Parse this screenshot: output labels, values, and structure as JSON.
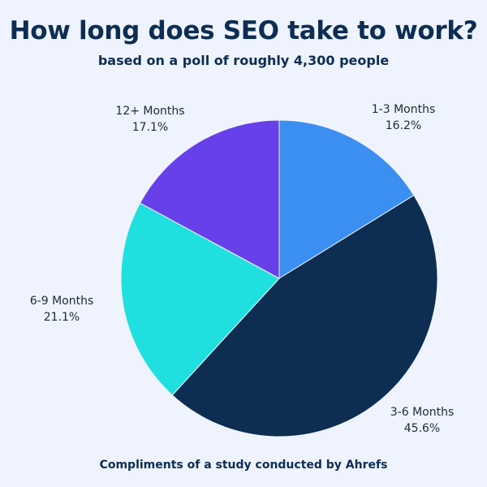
{
  "title": "How long does SEO take to work?",
  "subtitle": "based on a poll of roughly 4,300 people",
  "footer": "Compliments of a study conducted by Ahrefs",
  "chart_data": {
    "type": "pie",
    "start_angle_deg": 0,
    "direction": "clockwise",
    "legend": "none",
    "slices": [
      {
        "label": "1-3 Months",
        "value": 16.2,
        "value_label": "16.2%",
        "color": "#3a8ff0"
      },
      {
        "label": "3-6 Months",
        "value": 45.6,
        "value_label": "45.6%",
        "color": "#0d2d52"
      },
      {
        "label": "6-9 Months",
        "value": 21.1,
        "value_label": "21.1%",
        "color": "#1fe0de"
      },
      {
        "label": "12+ Months",
        "value": 17.1,
        "value_label": "17.1%",
        "color": "#6840ea"
      }
    ]
  }
}
